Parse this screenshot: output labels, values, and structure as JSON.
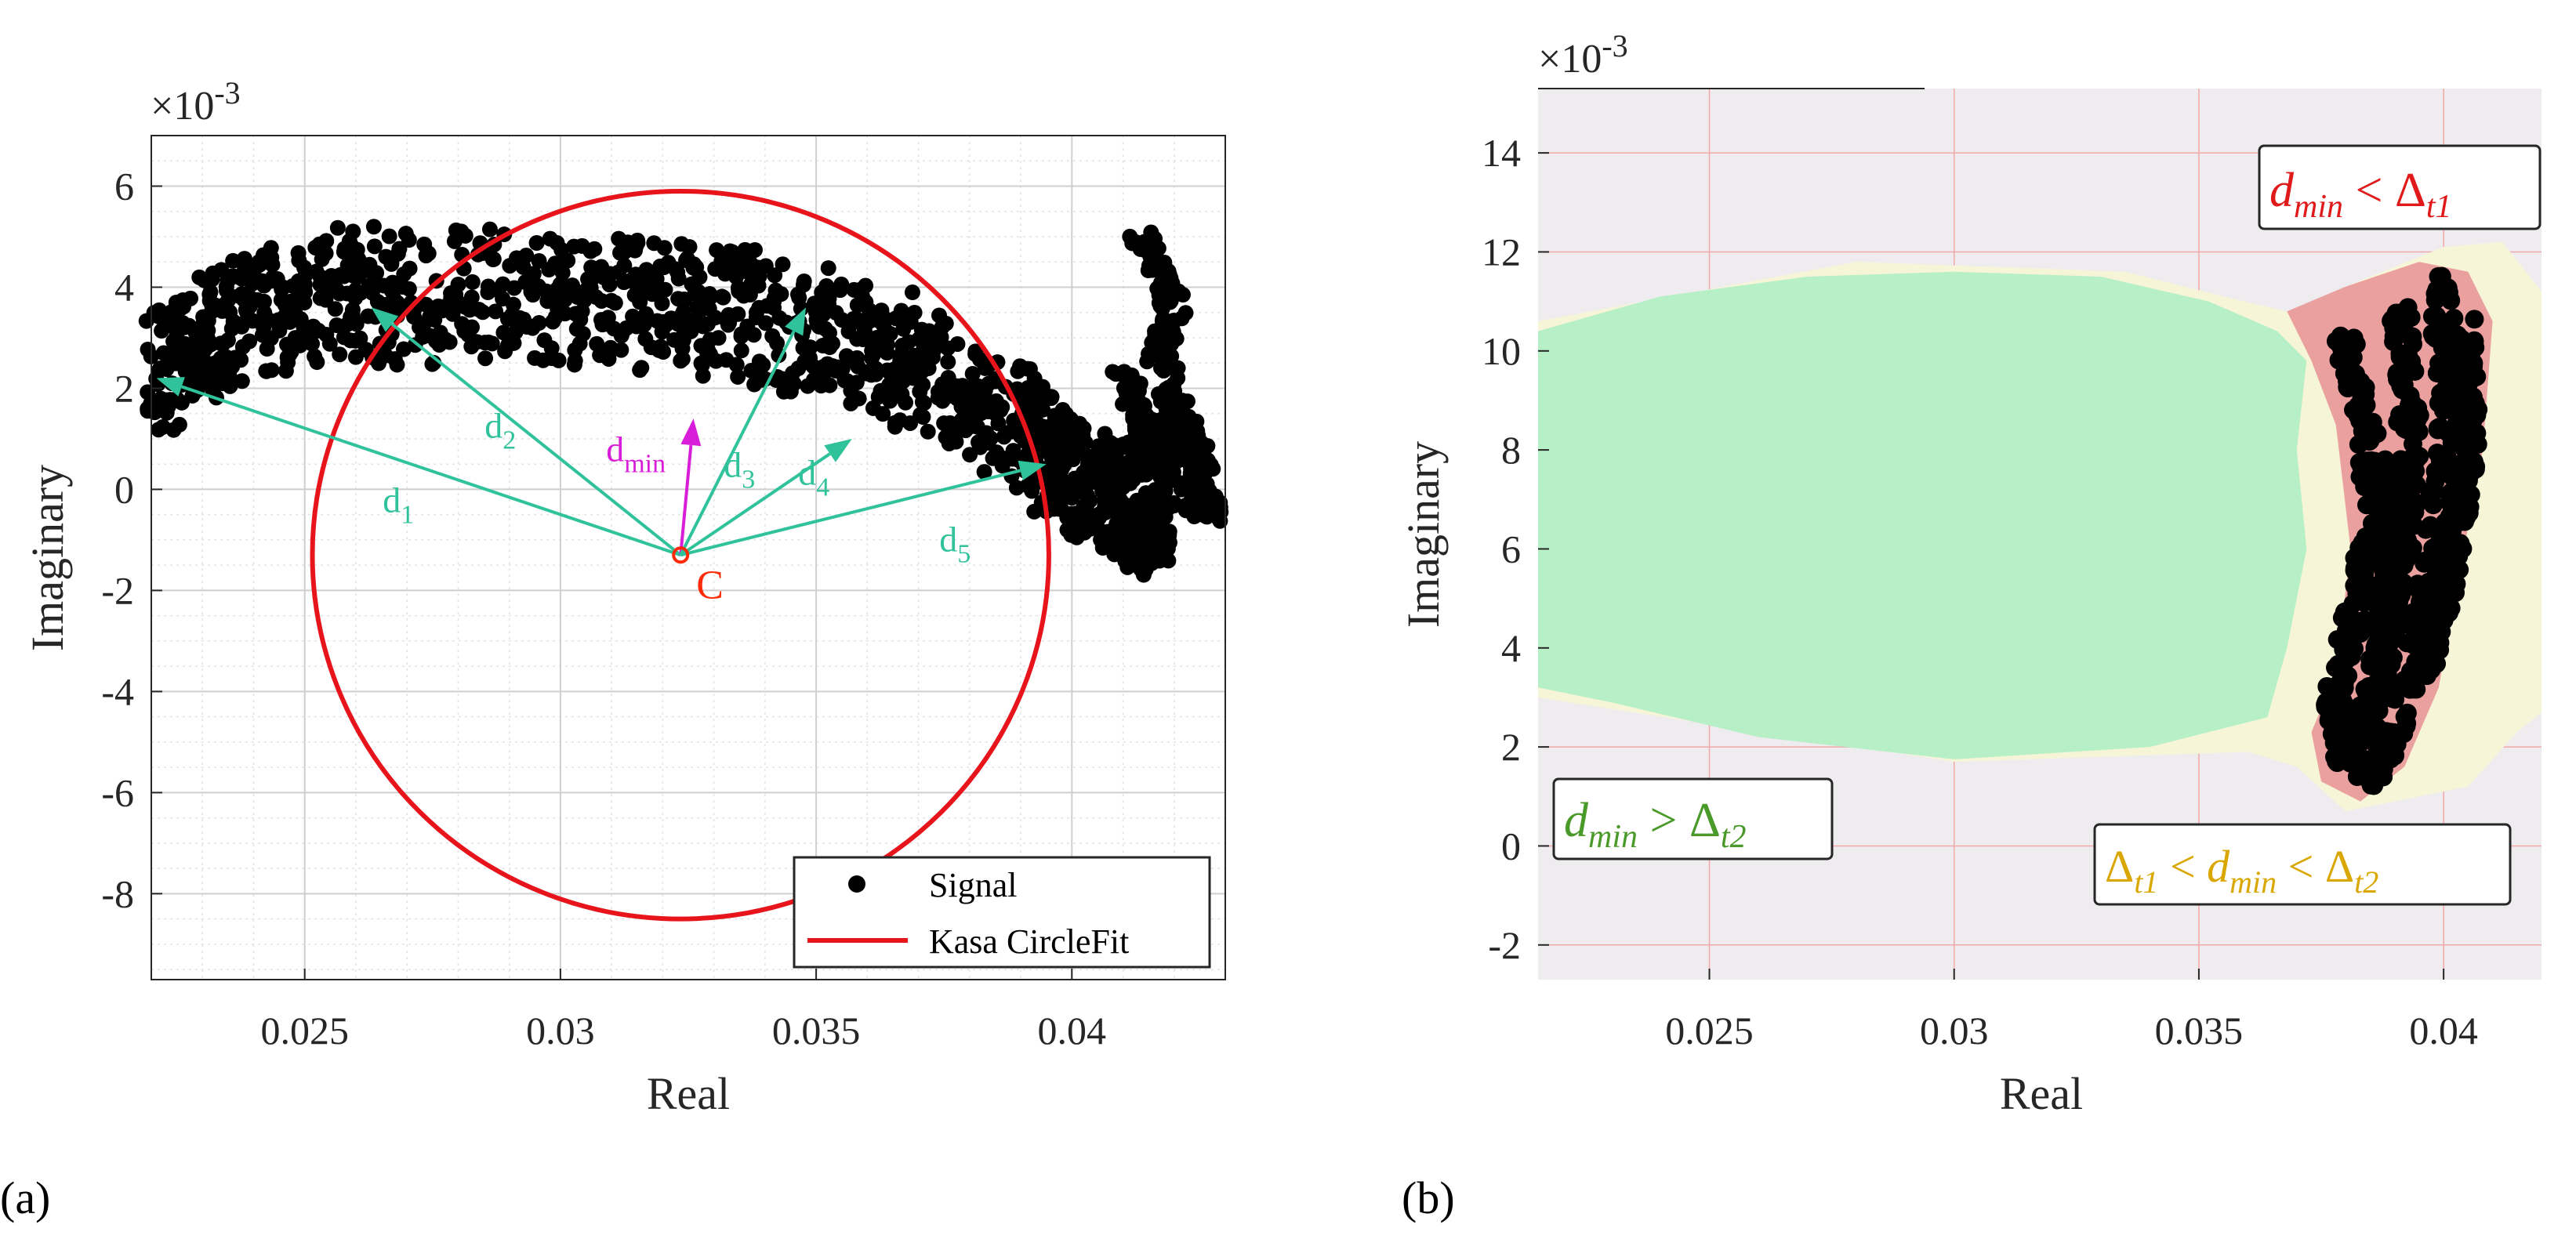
{
  "colors": {
    "signal": "#000000",
    "circle": "#e8141b",
    "arrow": "#2fc29b",
    "dmin": "#d81ed8",
    "center_label": "#ff2a0a",
    "green_region": "#b7f0c6",
    "red_region": "#eba0a0",
    "yellow_region": "#f6f5d8",
    "grey_bg": "#efecef",
    "label_green": "#4a9a2a",
    "label_red": "#e01a1a",
    "label_yellow": "#d9a700"
  },
  "chart_data": [
    {
      "type": "scatter",
      "panel_label": "(a)",
      "xlabel": "Real",
      "ylabel": "Imaginary",
      "y_exponent": "×10",
      "y_exponent_power": "-3",
      "xlim": [
        0.022,
        0.043
      ],
      "ylim": [
        -9.7,
        7.0
      ],
      "x_ticks": [
        0.025,
        0.03,
        0.035,
        0.04
      ],
      "x_tick_labels": [
        "0.025",
        "0.03",
        "0.035",
        "0.04"
      ],
      "y_ticks": [
        -8,
        -6,
        -4,
        -2,
        0,
        2,
        4,
        6
      ],
      "y_tick_labels": [
        "-8",
        "-6",
        "-4",
        "-2",
        "0",
        "2",
        "4",
        "6"
      ],
      "grid": true,
      "legend": [
        "Signal",
        "Kasa CircleFit"
      ],
      "legend_position": "bottom-right",
      "circle_fit": {
        "center": [
          0.03235,
          -1.3
        ],
        "radius_x": 0.0072,
        "radius_y": 7.2
      },
      "center_label": "C",
      "signal_band": [
        [
          0.022,
          2.4
        ],
        [
          0.0235,
          3.2
        ],
        [
          0.0255,
          3.8
        ],
        [
          0.0275,
          3.8
        ],
        [
          0.03,
          3.8
        ],
        [
          0.0325,
          3.6
        ],
        [
          0.035,
          3.2
        ],
        [
          0.037,
          2.4
        ],
        [
          0.039,
          1.2
        ],
        [
          0.04,
          0.3
        ],
        [
          0.041,
          -0.3
        ],
        [
          0.042,
          -0.4
        ]
      ],
      "signal_tail": [
        [
          0.0413,
          5.0
        ],
        [
          0.0417,
          4.4
        ],
        [
          0.042,
          3.6
        ],
        [
          0.0417,
          2.6
        ],
        [
          0.0421,
          1.6
        ],
        [
          0.0424,
          0.8
        ],
        [
          0.0426,
          0.0
        ],
        [
          0.0427,
          -0.5
        ],
        [
          0.0424,
          -0.2
        ],
        [
          0.042,
          0.6
        ],
        [
          0.0415,
          1.3
        ],
        [
          0.0412,
          1.8
        ],
        [
          0.041,
          2.2
        ]
      ],
      "distance_vectors": [
        {
          "label": "d",
          "sub": "1",
          "to": [
            0.0221,
            2.2
          ]
        },
        {
          "label": "d",
          "sub": "2",
          "to": [
            0.0263,
            3.6
          ]
        },
        {
          "label": "d",
          "sub": "min",
          "to": [
            0.0326,
            1.4
          ]
        },
        {
          "label": "d",
          "sub": "3",
          "to": [
            0.0348,
            3.6
          ]
        },
        {
          "label": "d",
          "sub": "4",
          "to": [
            0.0357,
            1.0
          ]
        },
        {
          "label": "d",
          "sub": "5",
          "to": [
            0.0395,
            0.5
          ]
        }
      ]
    },
    {
      "type": "scatter",
      "panel_label": "(b)",
      "xlabel": "Real",
      "ylabel": "Imaginary",
      "y_exponent": "×10",
      "y_exponent_power": "-3",
      "xlim": [
        0.0215,
        0.042
      ],
      "ylim": [
        -2.7,
        15.3
      ],
      "x_ticks": [
        0.025,
        0.03,
        0.035,
        0.04
      ],
      "x_tick_labels": [
        "0.025",
        "0.03",
        "0.035",
        "0.04"
      ],
      "y_ticks": [
        -2,
        0,
        2,
        4,
        6,
        8,
        10,
        12,
        14
      ],
      "y_tick_labels": [
        "-2",
        "0",
        "2",
        "4",
        "6",
        "8",
        "10",
        "12",
        "14"
      ],
      "regions": [
        {
          "name": "green",
          "condition": "d_min > Δ_t2"
        },
        {
          "name": "red",
          "condition": "d_min < Δ_t1"
        },
        {
          "name": "yellow",
          "condition": "Δ_t1 < d_min < Δ_t2"
        }
      ],
      "region_labels": {
        "green": {
          "d": "d",
          "sub": "min",
          "op": " > ",
          "delta": "Δ",
          "dsub": "t2"
        },
        "red": {
          "d": "d",
          "sub": "min",
          "op": " < ",
          "delta": "Δ",
          "dsub": "t1"
        },
        "yellow": {
          "delta1": "Δ",
          "dsub1": "t1",
          "op1": " < ",
          "d": "d",
          "sub": "min",
          "op2": " < ",
          "delta2": "Δ",
          "dsub2": "t2"
        }
      }
    }
  ]
}
